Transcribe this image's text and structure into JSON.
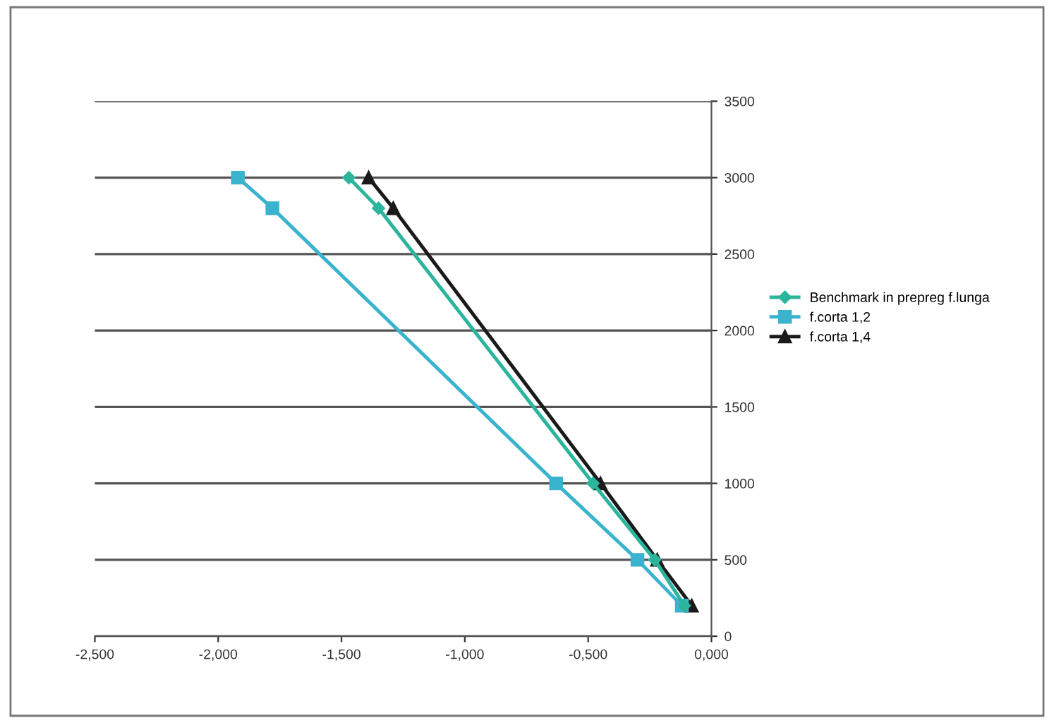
{
  "chart_data": {
    "type": "line",
    "series": [
      {
        "name": "Benchmark in prepreg f.lunga",
        "color": "#2ab59c",
        "marker": "diamond",
        "x": [
          -1.47,
          -1.35,
          -0.48,
          -0.23,
          -0.11
        ],
        "values": [
          3000,
          2800,
          1000,
          500,
          200
        ]
      },
      {
        "name": "f.corta 1,2",
        "color": "#3ab3cf",
        "marker": "square",
        "x": [
          -1.92,
          -1.78,
          -0.63,
          -0.3,
          -0.12
        ],
        "values": [
          3000,
          2800,
          1000,
          500,
          200
        ]
      },
      {
        "name": "f.corta 1,4",
        "color": "#1a1a1a",
        "marker": "triangle",
        "x": [
          -1.39,
          -1.29,
          -0.45,
          -0.22,
          -0.08
        ],
        "values": [
          3000,
          2800,
          1000,
          500,
          200
        ]
      }
    ],
    "xlim": [
      -2.5,
      0
    ],
    "xticks": [
      {
        "value": -2.5,
        "label": "-2,500"
      },
      {
        "value": -2.0,
        "label": "-2,000"
      },
      {
        "value": -1.5,
        "label": "-1,500"
      },
      {
        "value": -1.0,
        "label": "-1,000"
      },
      {
        "value": -0.5,
        "label": "-0,500"
      },
      {
        "value": 0,
        "label": "0,000"
      }
    ],
    "ylim": [
      0,
      3500
    ],
    "yticks": [
      0,
      500,
      1000,
      1500,
      2000,
      2500,
      3000,
      3500
    ],
    "grid": "y",
    "legend": "right",
    "line_style": "solid"
  }
}
